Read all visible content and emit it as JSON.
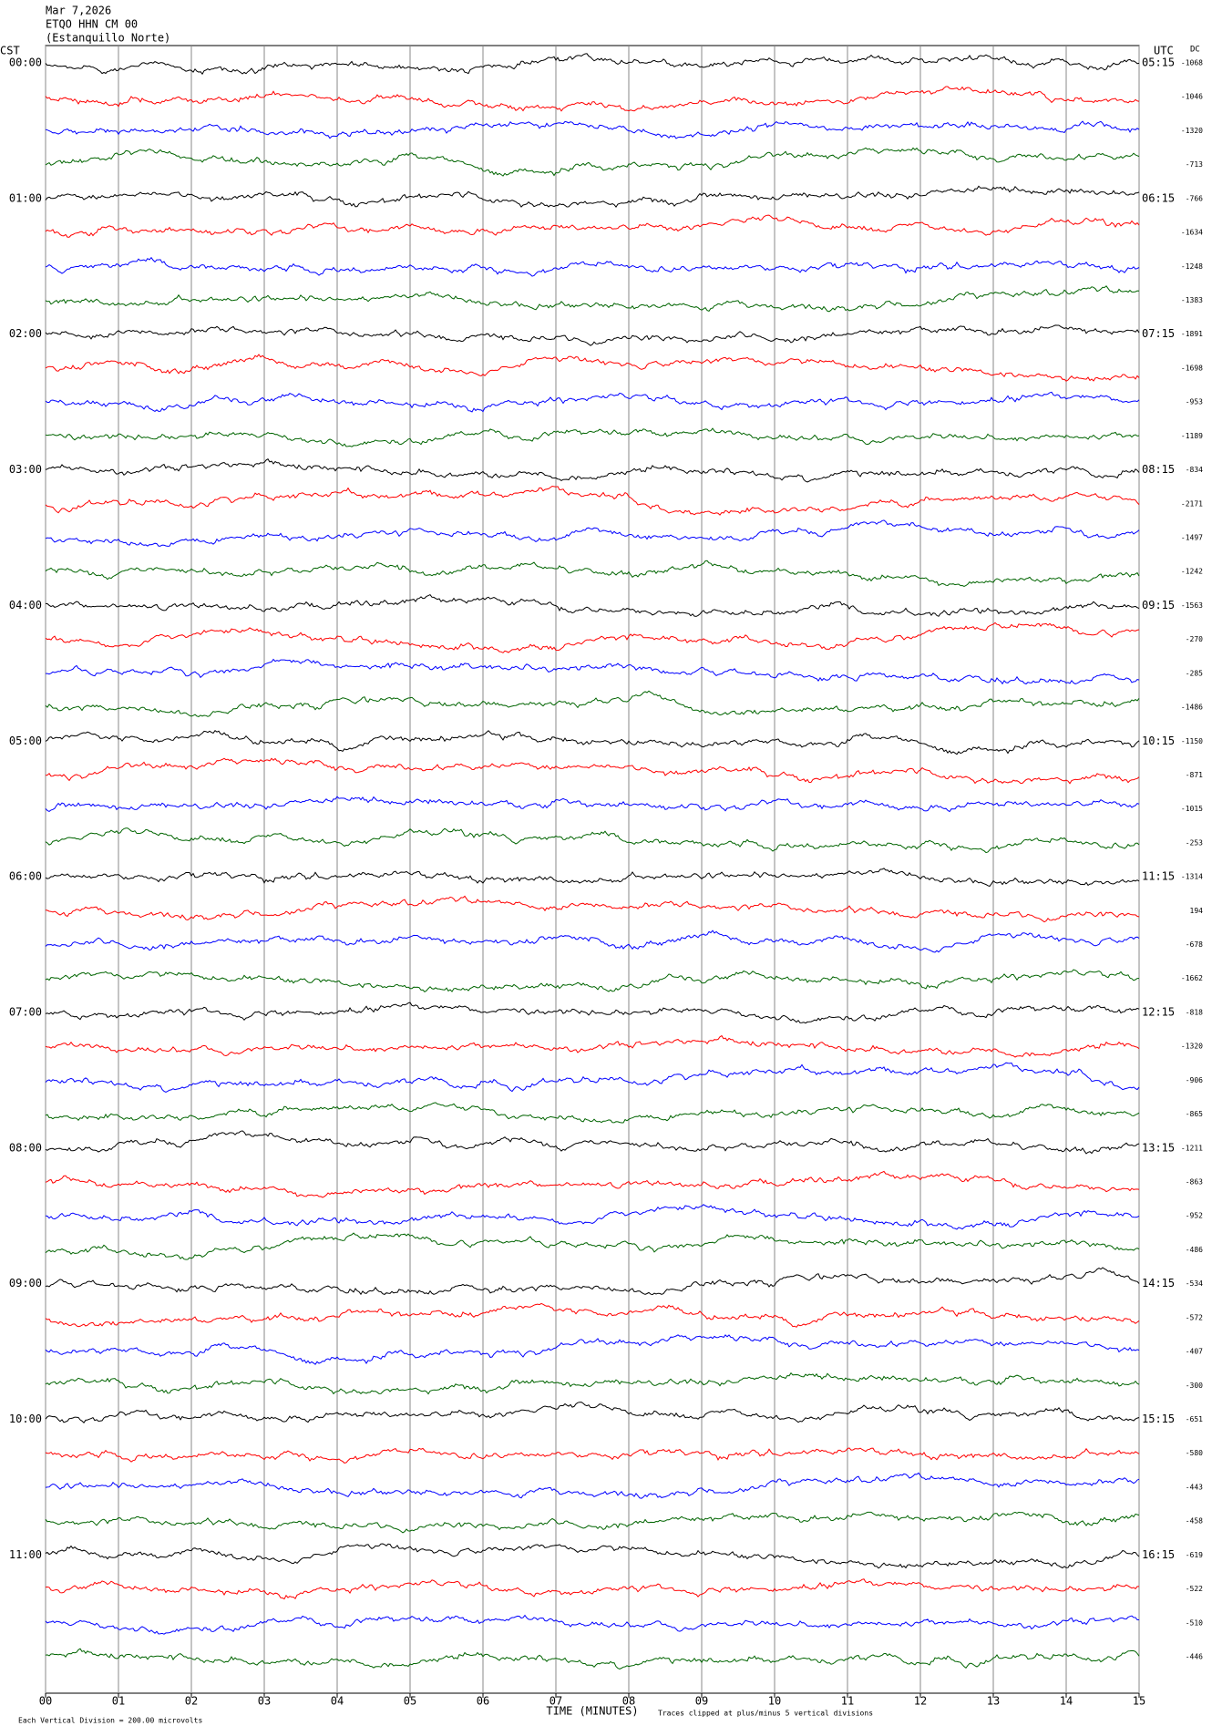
{
  "chart_data": {
    "type": "helicorder",
    "header_lines": [
      "Mar 7,2026",
      "ETQO HHN CM 00",
      "(Estanquillo Norte)"
    ],
    "left_axis_title": "CST",
    "right_axis_title": "UTC",
    "dc_title": "DC",
    "left_labels": [
      "00:00",
      "01:00",
      "02:00",
      "03:00",
      "04:00",
      "05:00",
      "06:00",
      "07:00",
      "08:00",
      "09:00",
      "10:00",
      "11:00"
    ],
    "right_labels": [
      "05:15",
      "06:15",
      "07:15",
      "08:15",
      "09:15",
      "10:15",
      "11:15",
      "12:15",
      "13:15",
      "14:15",
      "15:15",
      "16:15"
    ],
    "dc_values": [
      -1068,
      -1046,
      -1320,
      -713,
      -766,
      -1634,
      -1248,
      -1383,
      -1891,
      -1698,
      -953,
      -1189,
      -834,
      -2171,
      -1497,
      -1242,
      -1563,
      -270,
      -285,
      -1486,
      -1150,
      -871,
      -1015,
      -253,
      -1314,
      194,
      -678,
      -1662,
      -818,
      -1320,
      -906,
      -865,
      -1211,
      -863,
      -952,
      -486,
      -534,
      -572,
      -407,
      -300,
      -651,
      -580,
      -443,
      -458,
      -619,
      -522,
      -510,
      -446
    ],
    "x_label": "TIME (MINUTES)",
    "xlim": [
      0,
      15
    ],
    "xticks": [
      {
        "value": 0,
        "label": "00"
      },
      {
        "value": 1,
        "label": "01"
      },
      {
        "value": 2,
        "label": "02"
      },
      {
        "value": 3,
        "label": "03"
      },
      {
        "value": 4,
        "label": "04"
      },
      {
        "value": 5,
        "label": "05"
      },
      {
        "value": 6,
        "label": "06"
      },
      {
        "value": 7,
        "label": "07"
      },
      {
        "value": 8,
        "label": "08"
      },
      {
        "value": 9,
        "label": "09"
      },
      {
        "value": 10,
        "label": "10"
      },
      {
        "value": 11,
        "label": "11"
      },
      {
        "value": 12,
        "label": "12"
      },
      {
        "value": 13,
        "label": "13"
      },
      {
        "value": 14,
        "label": "14"
      },
      {
        "value": 15,
        "label": "15"
      }
    ],
    "scale_note": "Each Vertical Division = 200.00 microvolts",
    "clip_note": "Traces clipped at plus/minus 5 vertical divisions",
    "trace_colors": [
      "#000000",
      "#ff0000",
      "#0000ff",
      "#006400"
    ]
  }
}
